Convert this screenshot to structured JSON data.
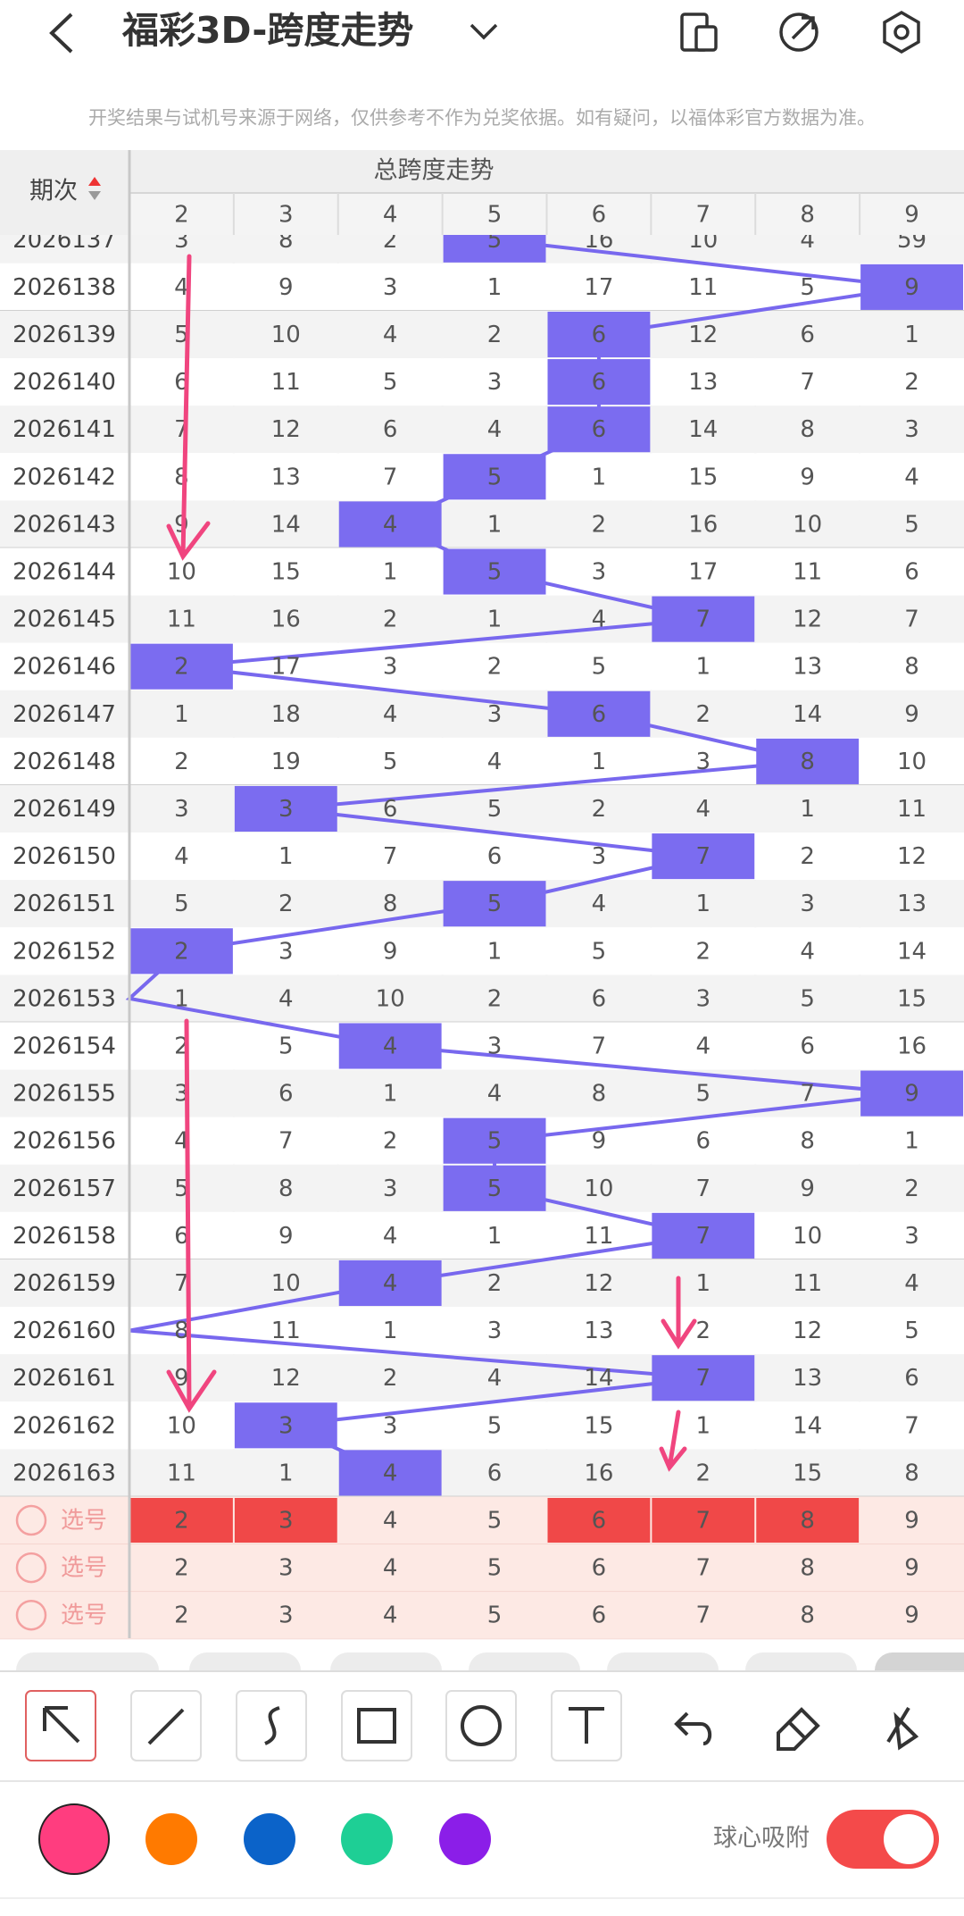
{
  "header": {
    "title": "福彩3D-跨度走势",
    "notice": "开奖结果与试机号来源于网络，仅供参考不作为兑奖依据。如有疑问，以福体彩官方数据为准。"
  },
  "table": {
    "issue_header": "期次",
    "group_header": "总跨度走势",
    "columns": [
      2,
      3,
      4,
      5,
      6,
      7,
      8,
      9
    ],
    "rows": [
      {
        "issue": "2026137",
        "cells": [
          3,
          8,
          2,
          5,
          16,
          10,
          4,
          59
        ],
        "hit": 3
      },
      {
        "issue": "2026138",
        "cells": [
          4,
          9,
          3,
          1,
          17,
          11,
          5,
          9
        ],
        "hit": 7
      },
      {
        "issue": "2026139",
        "cells": [
          5,
          10,
          4,
          2,
          6,
          12,
          6,
          1
        ],
        "hit": 4
      },
      {
        "issue": "2026140",
        "cells": [
          6,
          11,
          5,
          3,
          6,
          13,
          7,
          2
        ],
        "hit": 4
      },
      {
        "issue": "2026141",
        "cells": [
          7,
          12,
          6,
          4,
          6,
          14,
          8,
          3
        ],
        "hit": 4
      },
      {
        "issue": "2026142",
        "cells": [
          8,
          13,
          7,
          5,
          1,
          15,
          9,
          4
        ],
        "hit": 3
      },
      {
        "issue": "2026143",
        "cells": [
          9,
          14,
          4,
          1,
          2,
          16,
          10,
          5
        ],
        "hit": 2
      },
      {
        "issue": "2026144",
        "cells": [
          10,
          15,
          1,
          5,
          3,
          17,
          11,
          6
        ],
        "hit": 3
      },
      {
        "issue": "2026145",
        "cells": [
          11,
          16,
          2,
          1,
          4,
          7,
          12,
          7
        ],
        "hit": 5
      },
      {
        "issue": "2026146",
        "cells": [
          2,
          17,
          3,
          2,
          5,
          1,
          13,
          8
        ],
        "hit": 0
      },
      {
        "issue": "2026147",
        "cells": [
          1,
          18,
          4,
          3,
          6,
          2,
          14,
          9
        ],
        "hit": 4
      },
      {
        "issue": "2026148",
        "cells": [
          2,
          19,
          5,
          4,
          1,
          3,
          8,
          10
        ],
        "hit": 6
      },
      {
        "issue": "2026149",
        "cells": [
          3,
          3,
          6,
          5,
          2,
          4,
          1,
          11
        ],
        "hit": 1
      },
      {
        "issue": "2026150",
        "cells": [
          4,
          1,
          7,
          6,
          3,
          7,
          2,
          12
        ],
        "hit": 5
      },
      {
        "issue": "2026151",
        "cells": [
          5,
          2,
          8,
          5,
          4,
          1,
          3,
          13
        ],
        "hit": 3
      },
      {
        "issue": "2026152",
        "cells": [
          2,
          3,
          9,
          1,
          5,
          2,
          4,
          14
        ],
        "hit": 0
      },
      {
        "issue": "2026153",
        "cells": [
          1,
          4,
          10,
          2,
          6,
          3,
          5,
          15
        ],
        "hit": null
      },
      {
        "issue": "2026154",
        "cells": [
          2,
          5,
          4,
          3,
          7,
          4,
          6,
          16
        ],
        "hit": 2
      },
      {
        "issue": "2026155",
        "cells": [
          3,
          6,
          1,
          4,
          8,
          5,
          7,
          9
        ],
        "hit": 7
      },
      {
        "issue": "2026156",
        "cells": [
          4,
          7,
          2,
          5,
          9,
          6,
          8,
          1
        ],
        "hit": 3
      },
      {
        "issue": "2026157",
        "cells": [
          5,
          8,
          3,
          5,
          10,
          7,
          9,
          2
        ],
        "hit": 3
      },
      {
        "issue": "2026158",
        "cells": [
          6,
          9,
          4,
          1,
          11,
          7,
          10,
          3
        ],
        "hit": 5
      },
      {
        "issue": "2026159",
        "cells": [
          7,
          10,
          4,
          2,
          12,
          1,
          11,
          4
        ],
        "hit": 2
      },
      {
        "issue": "2026160",
        "cells": [
          8,
          11,
          1,
          3,
          13,
          2,
          12,
          5
        ],
        "hit": null
      },
      {
        "issue": "2026161",
        "cells": [
          9,
          12,
          2,
          4,
          14,
          7,
          13,
          6
        ],
        "hit": 5
      },
      {
        "issue": "2026162",
        "cells": [
          10,
          3,
          3,
          5,
          15,
          1,
          14,
          7
        ],
        "hit": 1
      },
      {
        "issue": "2026163",
        "cells": [
          11,
          1,
          4,
          6,
          16,
          2,
          15,
          8
        ],
        "hit": 2
      }
    ],
    "select_rows": [
      {
        "label": "选号",
        "cells": [
          2,
          3,
          4,
          5,
          6,
          7,
          8,
          9
        ],
        "selected": [
          0,
          1,
          4,
          5,
          6
        ]
      },
      {
        "label": "选号",
        "cells": [
          2,
          3,
          4,
          5,
          6,
          7,
          8,
          9
        ],
        "selected": []
      },
      {
        "label": "选号",
        "cells": [
          2,
          3,
          4,
          5,
          6,
          7,
          8,
          9
        ],
        "selected": []
      }
    ]
  },
  "toolbar": {
    "snap_label": "球心吸附",
    "snap_on": true
  }
}
